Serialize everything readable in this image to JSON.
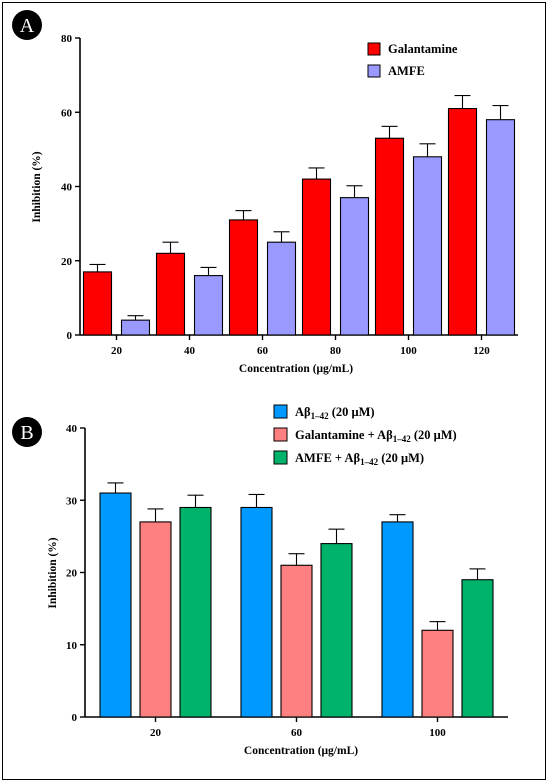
{
  "panels": [
    {
      "letter": "A",
      "ylabel": "Inhibition (%)",
      "xlabel": "Concentration (μg/mL)"
    },
    {
      "letter": "B",
      "ylabel": "Inhibition (%)",
      "xlabel": "Concentration (μg/mL)"
    }
  ],
  "chart_data": [
    {
      "type": "bar",
      "title": "",
      "xlabel": "Concentration (μg/mL)",
      "ylabel": "Inhibition (%)",
      "ylim": [
        0,
        80
      ],
      "yticks": [
        0,
        20,
        40,
        60,
        80
      ],
      "categories": [
        "20",
        "40",
        "60",
        "80",
        "100",
        "120"
      ],
      "legend_position": "top-right",
      "series": [
        {
          "name": "Galantamine",
          "color": "#ff0000",
          "values": [
            17,
            22,
            31,
            42,
            53,
            61
          ],
          "errors": [
            2,
            3,
            2.5,
            3,
            3.2,
            3.5
          ]
        },
        {
          "name": "AMFE",
          "color": "#9999ff",
          "values": [
            4,
            16,
            25,
            37,
            48,
            58
          ],
          "errors": [
            1.2,
            2.2,
            2.8,
            3.2,
            3.5,
            3.8
          ]
        }
      ]
    },
    {
      "type": "bar",
      "title": "",
      "xlabel": "Concentration (μg/mL)",
      "ylabel": "Inhibition (%)",
      "ylim": [
        0,
        40
      ],
      "yticks": [
        0,
        10,
        20,
        30,
        40
      ],
      "categories": [
        "20",
        "60",
        "100"
      ],
      "legend_position": "top-right",
      "series": [
        {
          "name": "Aβ",
          "sub": "1–42",
          "suffix": " (20 μM)",
          "color": "#0099ff",
          "values": [
            31,
            29,
            27
          ],
          "errors": [
            1.4,
            1.8,
            1.0
          ]
        },
        {
          "name": "Galantamine + Aβ",
          "sub": "1–42",
          "suffix": " (20 μM)",
          "color": "#ff8080",
          "values": [
            27,
            21,
            12
          ],
          "errors": [
            1.8,
            1.6,
            1.2
          ]
        },
        {
          "name": "AMFE + Aβ",
          "sub": "1–42",
          "suffix": " (20 μM)",
          "color": "#00b36b",
          "values": [
            29,
            24,
            19
          ],
          "errors": [
            1.7,
            2.0,
            1.5
          ]
        }
      ]
    }
  ]
}
